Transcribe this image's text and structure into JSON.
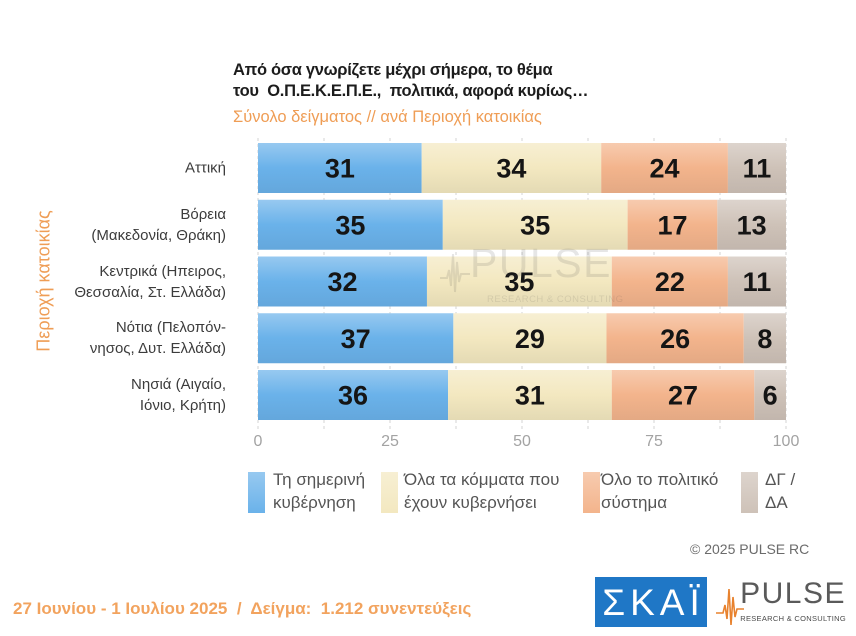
{
  "colors": {
    "accent_orange": "#EF9D55",
    "footer_orange": "#F2A35E",
    "title_text": "#1C1C1C",
    "label_text": "#3C3C3C",
    "legend_text": "#555555",
    "tick_text": "#A3A3A3",
    "skai_blue": "#1F77C6",
    "pulse_wave": "#E8822E"
  },
  "chart_data": {
    "type": "bar",
    "orientation": "horizontal",
    "stacked": true,
    "title": "Από όσα γνωρίζετε μέχρι σήμερα, το θέμα\nτου  Ο.Π.Ε.Κ.Ε.Π.Ε.,  πολιτικά, αφορά κυρίως…",
    "subtitle": "Σύνολο δείγματος // ανά Περιοχή κατοικίας",
    "ylabel": "Περιοχή κατοικίας",
    "xlim": [
      0,
      100
    ],
    "xticks": [
      0,
      25,
      50,
      75,
      100
    ],
    "grid": true,
    "legend_position": "bottom",
    "categories": [
      "Αττική",
      "Βόρεια\n(Μακεδονία, Θράκη)",
      "Κεντρικά (Ηπειρος,\nΘεσσαλία, Στ. Ελλάδα)",
      "Νότια (Πελοπόν-\nνησος, Δυτ. Ελλάδα)",
      "Νησιά (Αιγαίο,\nΙόνιο, Κρήτη)"
    ],
    "series": [
      {
        "name": "Τη σημερινή\nκυβέρνηση",
        "color": "#6AB2EA",
        "values": [
          31,
          35,
          32,
          37,
          36
        ]
      },
      {
        "name": "Όλα τα κόμματα που\nέχουν κυβερνήσει",
        "color": "#F3E8C0",
        "values": [
          34,
          35,
          35,
          29,
          31
        ]
      },
      {
        "name": "Όλο το πολιτικό\nσύστημα",
        "color": "#F3B48C",
        "values": [
          24,
          17,
          22,
          26,
          27
        ]
      },
      {
        "name": "ΔΓ /\nΔΑ",
        "color": "#CEC2B8",
        "values": [
          11,
          13,
          11,
          8,
          6
        ]
      }
    ]
  },
  "copyright": "© 2025 PULSE RC",
  "footer": "27 Ιουνίου - 1 Ιουλίου 2025  /  Δείγμα:  1.212 συνεντεύξεις",
  "watermark": {
    "name": "PULSE",
    "tagline": "RESEARCH & CONSULTING"
  },
  "logos": {
    "skai": "ΣΚΑΪ",
    "pulse": "PULSE",
    "pulse_tagline": "RESEARCH & CONSULTING"
  }
}
